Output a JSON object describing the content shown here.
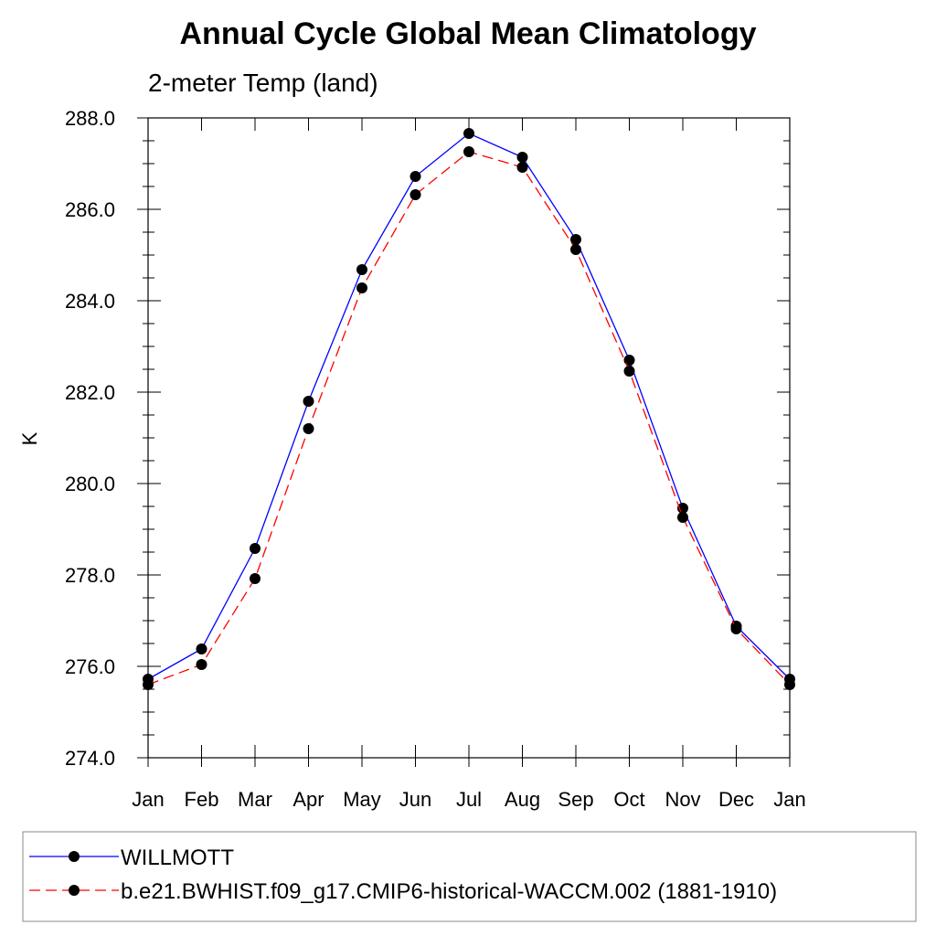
{
  "chart_data": {
    "type": "line",
    "title": "Annual Cycle Global Mean Climatology",
    "subtitle": "2-meter Temp (land)",
    "xlabel": "",
    "ylabel": "K",
    "ylim": [
      274.0,
      288.0
    ],
    "y_ticks": [
      274.0,
      276.0,
      278.0,
      280.0,
      282.0,
      284.0,
      286.0,
      288.0
    ],
    "y_tick_labels": [
      "274.0",
      "276.0",
      "278.0",
      "280.0",
      "282.0",
      "284.0",
      "286.0",
      "288.0"
    ],
    "categories": [
      "Jan",
      "Feb",
      "Mar",
      "Apr",
      "May",
      "Jun",
      "Jul",
      "Aug",
      "Sep",
      "Oct",
      "Nov",
      "Dec",
      "Jan"
    ],
    "grid": false,
    "legend_position": "bottom",
    "series": [
      {
        "name": "WILLMOTT",
        "color": "#0000ff",
        "dash": "solid",
        "marker": "dot",
        "values": [
          275.72,
          276.38,
          278.58,
          281.8,
          284.68,
          286.72,
          287.66,
          287.14,
          285.34,
          282.7,
          279.46,
          276.88,
          275.72
        ]
      },
      {
        "name": "b.e21.BWHIST.f09_g17.CMIP6-historical-WACCM.002 (1881-1910)",
        "color": "#ff0000",
        "dash": "dashed",
        "marker": "dot",
        "values": [
          275.6,
          276.04,
          277.92,
          281.2,
          284.28,
          286.32,
          287.26,
          286.92,
          285.12,
          282.46,
          279.26,
          276.82,
          275.6
        ]
      }
    ]
  }
}
